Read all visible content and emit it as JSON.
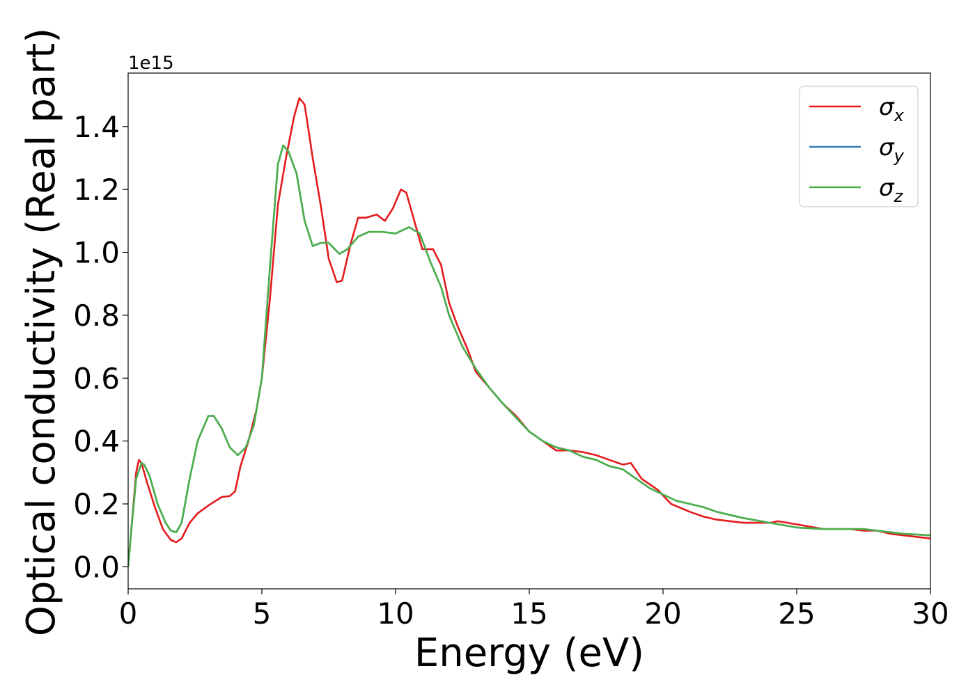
{
  "chart_data": {
    "type": "line",
    "title": "",
    "xlabel": "Energy (eV)",
    "ylabel": "Optical conductivity (Real part)",
    "y_offset_label": "1e15",
    "xlim": [
      0,
      30
    ],
    "ylim": [
      -0.07,
      1.57
    ],
    "xticks": [
      0,
      5,
      10,
      15,
      20,
      25,
      30
    ],
    "yticks": [
      0.0,
      0.2,
      0.4,
      0.6,
      0.8,
      1.0,
      1.2,
      1.4
    ],
    "grid": false,
    "legend": {
      "position": "top-right"
    },
    "series": [
      {
        "name": "σ",
        "subscript": "x",
        "color": "#e41a1c",
        "points": [
          [
            0,
            0
          ],
          [
            0.1,
            0.1
          ],
          [
            0.2,
            0.2
          ],
          [
            0.3,
            0.3
          ],
          [
            0.4,
            0.34
          ],
          [
            0.5,
            0.33
          ],
          [
            0.7,
            0.27
          ],
          [
            1.0,
            0.19
          ],
          [
            1.3,
            0.12
          ],
          [
            1.6,
            0.085
          ],
          [
            1.8,
            0.078
          ],
          [
            2.0,
            0.09
          ],
          [
            2.3,
            0.14
          ],
          [
            2.6,
            0.17
          ],
          [
            3.0,
            0.195
          ],
          [
            3.5,
            0.222
          ],
          [
            3.8,
            0.225
          ],
          [
            4.0,
            0.24
          ],
          [
            4.2,
            0.32
          ],
          [
            4.5,
            0.4
          ],
          [
            4.8,
            0.5
          ],
          [
            5.0,
            0.6
          ],
          [
            5.3,
            0.85
          ],
          [
            5.6,
            1.15
          ],
          [
            5.9,
            1.3
          ],
          [
            6.2,
            1.43
          ],
          [
            6.4,
            1.49
          ],
          [
            6.6,
            1.47
          ],
          [
            6.9,
            1.3
          ],
          [
            7.2,
            1.15
          ],
          [
            7.5,
            0.98
          ],
          [
            7.8,
            0.905
          ],
          [
            8.0,
            0.91
          ],
          [
            8.3,
            1.02
          ],
          [
            8.6,
            1.11
          ],
          [
            8.9,
            1.11
          ],
          [
            9.3,
            1.12
          ],
          [
            9.6,
            1.1
          ],
          [
            9.9,
            1.14
          ],
          [
            10.2,
            1.2
          ],
          [
            10.4,
            1.19
          ],
          [
            10.7,
            1.1
          ],
          [
            11.0,
            1.01
          ],
          [
            11.4,
            1.01
          ],
          [
            11.7,
            0.96
          ],
          [
            12.0,
            0.84
          ],
          [
            12.3,
            0.77
          ],
          [
            12.7,
            0.69
          ],
          [
            13.0,
            0.62
          ],
          [
            13.5,
            0.57
          ],
          [
            14.0,
            0.52
          ],
          [
            14.5,
            0.48
          ],
          [
            15.0,
            0.43
          ],
          [
            15.5,
            0.4
          ],
          [
            16.0,
            0.37
          ],
          [
            16.5,
            0.37
          ],
          [
            17.0,
            0.365
          ],
          [
            17.5,
            0.355
          ],
          [
            18.0,
            0.34
          ],
          [
            18.5,
            0.325
          ],
          [
            18.8,
            0.33
          ],
          [
            19.2,
            0.28
          ],
          [
            19.8,
            0.245
          ],
          [
            20.3,
            0.2
          ],
          [
            21.0,
            0.175
          ],
          [
            21.5,
            0.16
          ],
          [
            22.0,
            0.15
          ],
          [
            23.0,
            0.14
          ],
          [
            24.0,
            0.14
          ],
          [
            24.3,
            0.145
          ],
          [
            25.0,
            0.135
          ],
          [
            26.0,
            0.12
          ],
          [
            27.0,
            0.12
          ],
          [
            27.5,
            0.115
          ],
          [
            28.0,
            0.115
          ],
          [
            28.5,
            0.105
          ],
          [
            29.0,
            0.1
          ],
          [
            30.0,
            0.09
          ]
        ]
      },
      {
        "name": "σ",
        "subscript": "y",
        "color": "#377eb8",
        "points": [
          [
            0,
            0
          ],
          [
            0.1,
            0.1
          ],
          [
            0.3,
            0.28
          ],
          [
            0.5,
            0.33
          ],
          [
            0.6,
            0.325
          ],
          [
            0.8,
            0.29
          ],
          [
            1.1,
            0.2
          ],
          [
            1.4,
            0.14
          ],
          [
            1.6,
            0.115
          ],
          [
            1.8,
            0.11
          ],
          [
            2.0,
            0.14
          ],
          [
            2.3,
            0.28
          ],
          [
            2.6,
            0.4
          ],
          [
            3.0,
            0.48
          ],
          [
            3.2,
            0.48
          ],
          [
            3.5,
            0.44
          ],
          [
            3.8,
            0.38
          ],
          [
            4.1,
            0.355
          ],
          [
            4.4,
            0.38
          ],
          [
            4.7,
            0.45
          ],
          [
            5.0,
            0.6
          ],
          [
            5.3,
            0.95
          ],
          [
            5.6,
            1.28
          ],
          [
            5.8,
            1.34
          ],
          [
            6.0,
            1.32
          ],
          [
            6.3,
            1.25
          ],
          [
            6.6,
            1.1
          ],
          [
            6.9,
            1.02
          ],
          [
            7.2,
            1.03
          ],
          [
            7.5,
            1.03
          ],
          [
            7.9,
            0.995
          ],
          [
            8.2,
            1.01
          ],
          [
            8.6,
            1.05
          ],
          [
            9.0,
            1.065
          ],
          [
            9.5,
            1.065
          ],
          [
            10.0,
            1.06
          ],
          [
            10.5,
            1.08
          ],
          [
            10.9,
            1.06
          ],
          [
            11.3,
            0.97
          ],
          [
            11.7,
            0.89
          ],
          [
            12.0,
            0.8
          ],
          [
            12.5,
            0.7
          ],
          [
            13.0,
            0.63
          ],
          [
            13.5,
            0.57
          ],
          [
            14.0,
            0.52
          ],
          [
            14.5,
            0.475
          ],
          [
            15.0,
            0.43
          ],
          [
            15.5,
            0.4
          ],
          [
            16.0,
            0.38
          ],
          [
            16.5,
            0.37
          ],
          [
            17.0,
            0.35
          ],
          [
            17.5,
            0.34
          ],
          [
            18.0,
            0.32
          ],
          [
            18.5,
            0.31
          ],
          [
            19.0,
            0.28
          ],
          [
            19.5,
            0.25
          ],
          [
            20.0,
            0.23
          ],
          [
            20.5,
            0.21
          ],
          [
            21.0,
            0.2
          ],
          [
            21.5,
            0.19
          ],
          [
            22.0,
            0.175
          ],
          [
            23.0,
            0.155
          ],
          [
            24.0,
            0.14
          ],
          [
            25.0,
            0.125
          ],
          [
            26.0,
            0.12
          ],
          [
            27.0,
            0.12
          ],
          [
            27.5,
            0.12
          ],
          [
            28.0,
            0.115
          ],
          [
            28.5,
            0.11
          ],
          [
            29.0,
            0.105
          ],
          [
            30.0,
            0.1
          ]
        ]
      },
      {
        "name": "σ",
        "subscript": "z",
        "color": "#4daf4a",
        "points": [
          [
            0,
            0
          ],
          [
            0.1,
            0.1
          ],
          [
            0.3,
            0.28
          ],
          [
            0.5,
            0.33
          ],
          [
            0.6,
            0.325
          ],
          [
            0.8,
            0.29
          ],
          [
            1.1,
            0.2
          ],
          [
            1.4,
            0.14
          ],
          [
            1.6,
            0.115
          ],
          [
            1.8,
            0.11
          ],
          [
            2.0,
            0.14
          ],
          [
            2.3,
            0.28
          ],
          [
            2.6,
            0.4
          ],
          [
            3.0,
            0.48
          ],
          [
            3.2,
            0.48
          ],
          [
            3.5,
            0.44
          ],
          [
            3.8,
            0.38
          ],
          [
            4.1,
            0.355
          ],
          [
            4.4,
            0.38
          ],
          [
            4.7,
            0.45
          ],
          [
            5.0,
            0.6
          ],
          [
            5.3,
            0.95
          ],
          [
            5.6,
            1.28
          ],
          [
            5.8,
            1.34
          ],
          [
            6.0,
            1.32
          ],
          [
            6.3,
            1.25
          ],
          [
            6.6,
            1.1
          ],
          [
            6.9,
            1.02
          ],
          [
            7.2,
            1.03
          ],
          [
            7.5,
            1.03
          ],
          [
            7.9,
            0.995
          ],
          [
            8.2,
            1.01
          ],
          [
            8.6,
            1.05
          ],
          [
            9.0,
            1.065
          ],
          [
            9.5,
            1.065
          ],
          [
            10.0,
            1.06
          ],
          [
            10.5,
            1.08
          ],
          [
            10.9,
            1.06
          ],
          [
            11.3,
            0.97
          ],
          [
            11.7,
            0.89
          ],
          [
            12.0,
            0.8
          ],
          [
            12.5,
            0.7
          ],
          [
            13.0,
            0.63
          ],
          [
            13.5,
            0.57
          ],
          [
            14.0,
            0.52
          ],
          [
            14.5,
            0.475
          ],
          [
            15.0,
            0.43
          ],
          [
            15.5,
            0.4
          ],
          [
            16.0,
            0.38
          ],
          [
            16.5,
            0.37
          ],
          [
            17.0,
            0.35
          ],
          [
            17.5,
            0.34
          ],
          [
            18.0,
            0.32
          ],
          [
            18.5,
            0.31
          ],
          [
            19.0,
            0.28
          ],
          [
            19.5,
            0.25
          ],
          [
            20.0,
            0.23
          ],
          [
            20.5,
            0.21
          ],
          [
            21.0,
            0.2
          ],
          [
            21.5,
            0.19
          ],
          [
            22.0,
            0.175
          ],
          [
            23.0,
            0.155
          ],
          [
            24.0,
            0.14
          ],
          [
            25.0,
            0.125
          ],
          [
            26.0,
            0.12
          ],
          [
            27.0,
            0.12
          ],
          [
            27.5,
            0.12
          ],
          [
            28.0,
            0.115
          ],
          [
            28.5,
            0.11
          ],
          [
            29.0,
            0.105
          ],
          [
            30.0,
            0.1
          ]
        ]
      }
    ]
  }
}
